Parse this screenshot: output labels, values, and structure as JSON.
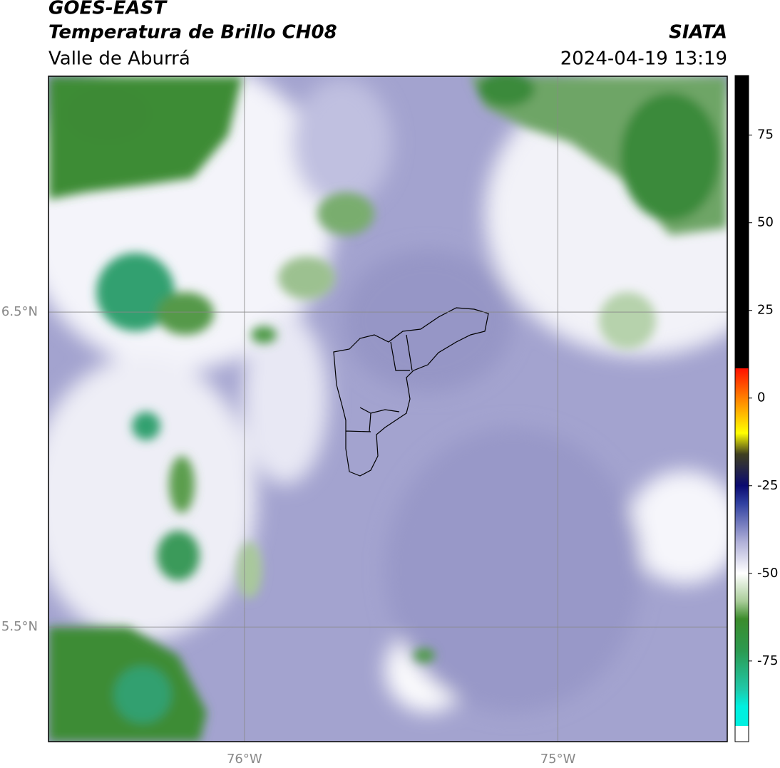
{
  "header": {
    "title": "GOES-EAST",
    "subtitle": "Temperatura de Brillo CH08",
    "region": "Valle de Aburrá",
    "source": "SIATA",
    "datetime": "2024-04-19 13:19"
  },
  "map": {
    "xlim": [
      -76.625,
      -74.46
    ],
    "ylim": [
      5.136,
      7.249
    ],
    "xticks": [
      {
        "value": -76,
        "label": "76°W"
      },
      {
        "value": -75,
        "label": "75°W"
      }
    ],
    "yticks": [
      {
        "value": 6.5,
        "label": "6.5°N"
      },
      {
        "value": 5.5,
        "label": "5.5°N"
      }
    ],
    "grid": true
  },
  "colorbar": {
    "clim": [
      -98,
      92
    ],
    "ticks": [
      75,
      50,
      25,
      0,
      -25,
      -50,
      -75
    ],
    "colormap": [
      [
        92,
        "#000000"
      ],
      [
        8.5,
        "#000000"
      ],
      [
        8.5,
        "#ff1000"
      ],
      [
        0,
        "#ff8000"
      ],
      [
        -10,
        "#ffff00"
      ],
      [
        -16,
        "#404020"
      ],
      [
        -25,
        "#0a0a70"
      ],
      [
        -30,
        "#3040a0"
      ],
      [
        -41,
        "#b0b0d8"
      ],
      [
        -50,
        "#ffffff"
      ],
      [
        -58,
        "#a8cc98"
      ],
      [
        -63,
        "#3c8c2c"
      ],
      [
        -72,
        "#2c9a50"
      ],
      [
        -83,
        "#20c8a8"
      ],
      [
        -88,
        "#00f0e0"
      ],
      [
        -93.5,
        "#00f0e0"
      ],
      [
        -93.5,
        "#ffffff"
      ],
      [
        -98,
        "#ffffff"
      ]
    ]
  }
}
